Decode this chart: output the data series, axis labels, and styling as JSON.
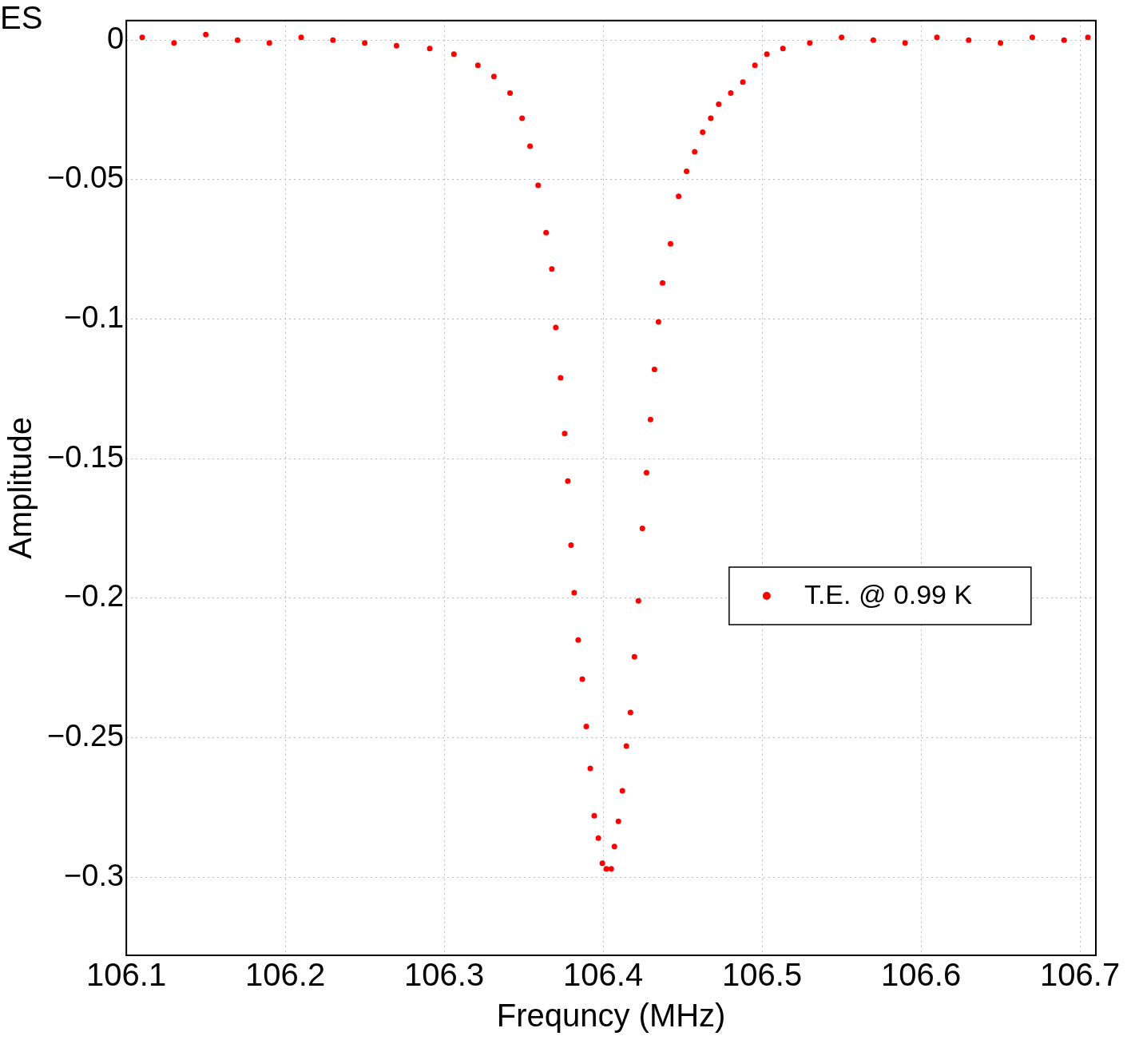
{
  "chart_data": {
    "type": "scatter",
    "xlabel": "Frequncy (MHz)",
    "ylabel": "Amplitude",
    "annotations": [
      "ES"
    ],
    "xlim": [
      106.1,
      106.71
    ],
    "xticks": [
      106.1,
      106.2,
      106.3,
      106.4,
      106.5,
      106.6,
      106.7
    ],
    "ylim": [
      -0.328,
      0.007
    ],
    "yticks": [
      0,
      {
        "value": -0.05,
        "label": "−0.05"
      },
      {
        "value": -0.1,
        "label": "−0.1"
      },
      {
        "value": -0.15,
        "label": "−0.15"
      },
      {
        "value": -0.2,
        "label": "−0.2"
      },
      {
        "value": -0.25,
        "label": "−0.25"
      },
      {
        "value": -0.3,
        "label": "−0.3"
      }
    ],
    "grid": true,
    "legend": "right",
    "marker": "circle",
    "series": [
      {
        "name": "T.E. @ 0.99 K",
        "color": "#ff0000",
        "x": [
          106.11,
          106.13,
          106.15,
          106.17,
          106.19,
          106.21,
          106.23,
          106.25,
          106.27,
          106.2909,
          106.3061,
          106.3212,
          106.3313,
          106.3414,
          106.349,
          106.354,
          106.3591,
          106.3641,
          106.3677,
          106.3702,
          106.3732,
          106.3758,
          106.3778,
          106.3798,
          106.3818,
          106.3843,
          106.3869,
          106.3894,
          106.3919,
          106.3944,
          106.397,
          106.3995,
          106.402,
          106.4051,
          106.4071,
          106.4096,
          106.4121,
          106.4146,
          106.4172,
          106.4197,
          106.4222,
          106.4247,
          106.4273,
          106.4298,
          106.4323,
          106.4348,
          106.4374,
          106.4424,
          106.4475,
          106.4525,
          106.4576,
          106.4626,
          106.4677,
          106.4727,
          106.4803,
          106.4879,
          106.4955,
          106.503,
          106.5131,
          106.53,
          106.55,
          106.57,
          106.59,
          106.61,
          106.63,
          106.65,
          106.67,
          106.69,
          106.705
        ],
        "values": [
          0.001,
          -0.001,
          0.002,
          0,
          -0.001,
          0.001,
          0,
          -0.001,
          -0.002,
          -0.003,
          -0.005,
          -0.009,
          -0.013,
          -0.019,
          -0.028,
          -0.038,
          -0.052,
          -0.069,
          -0.082,
          -0.103,
          -0.121,
          -0.141,
          -0.158,
          -0.181,
          -0.198,
          -0.215,
          -0.229,
          -0.246,
          -0.261,
          -0.278,
          -0.286,
          -0.295,
          -0.297,
          -0.297,
          -0.289,
          -0.28,
          -0.269,
          -0.253,
          -0.241,
          -0.221,
          -0.201,
          -0.175,
          -0.155,
          -0.136,
          -0.118,
          -0.101,
          -0.087,
          -0.073,
          -0.056,
          -0.047,
          -0.04,
          -0.033,
          -0.028,
          -0.023,
          -0.019,
          -0.015,
          -0.009,
          -0.005,
          -0.003,
          -0.001,
          0.001,
          0,
          -0.001,
          0.001,
          0,
          -0.001,
          0.001,
          0,
          0.001
        ]
      }
    ]
  }
}
